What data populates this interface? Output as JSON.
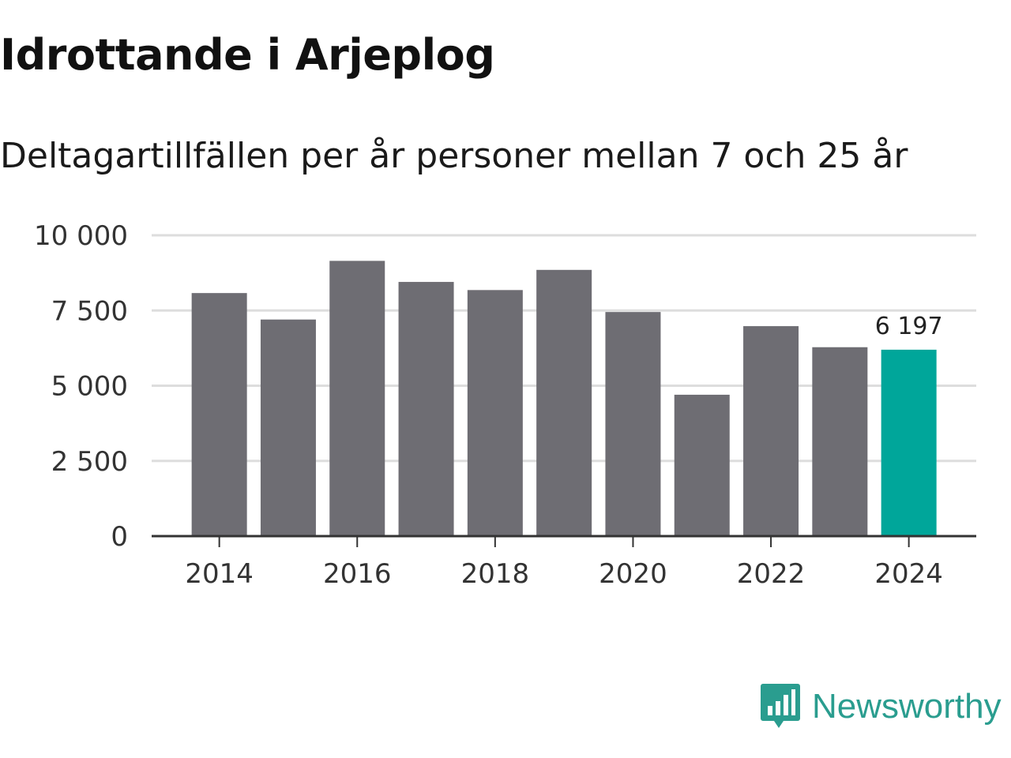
{
  "title": "Idrottande i Arjeplog",
  "subtitle": "Deltagartillfällen per år personer mellan 7 och 25 år",
  "brand": {
    "name": "Newsworthy",
    "icon": "newsworthy-logo-icon",
    "color": "#2a9d8f"
  },
  "colors": {
    "bar": "#6e6d73",
    "highlight": "#00a69a",
    "grid": "#dddddd",
    "axis": "#333333"
  },
  "chart_data": {
    "type": "bar",
    "title": "Idrottande i Arjeplog",
    "subtitle": "Deltagartillfällen per år personer mellan 7 och 25 år",
    "xlabel": "",
    "ylabel": "",
    "categories": [
      "2014",
      "2015",
      "2016",
      "2017",
      "2018",
      "2019",
      "2020",
      "2021",
      "2022",
      "2023",
      "2024"
    ],
    "values": [
      8080,
      7200,
      9150,
      8450,
      8180,
      8850,
      7450,
      4700,
      6980,
      6280,
      6197
    ],
    "highlight_index": 10,
    "highlight_label": "6 197",
    "ylim": [
      0,
      10000
    ],
    "yticks": [
      0,
      2500,
      5000,
      7500,
      10000
    ],
    "ytick_labels": [
      "0",
      "2 500",
      "5 000",
      "7 500",
      "10 000"
    ],
    "xtick_labels": [
      "2014",
      "2016",
      "2018",
      "2020",
      "2022",
      "2024"
    ],
    "grid": true,
    "legend": "none"
  }
}
